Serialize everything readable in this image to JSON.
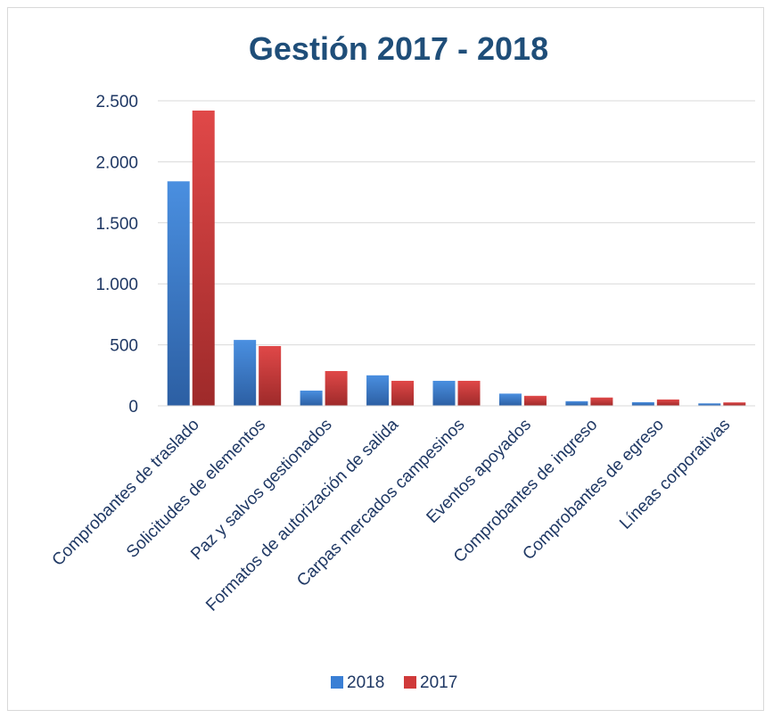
{
  "chart_data": {
    "type": "bar",
    "title": "Gestión 2017 - 2018",
    "categories": [
      "Comprobantes de traslado",
      "Solicitudes de elementos",
      "Paz y salvos gestionados",
      "Formatos de autorización de salida",
      "Carpas mercados campesinos",
      "Eventos apoyados",
      "Comprobantes de ingreso",
      "Comprobantes de egreso",
      "Líneas corporativas"
    ],
    "series": [
      {
        "name": "2018",
        "color": "#3a7fd5",
        "values": [
          1840,
          540,
          125,
          250,
          205,
          100,
          38,
          30,
          20
        ]
      },
      {
        "name": "2017",
        "color": "#d03a3a",
        "values": [
          2420,
          490,
          285,
          205,
          205,
          82,
          68,
          52,
          28
        ]
      }
    ],
    "ylim": [
      0,
      2500
    ],
    "yticks": [
      0,
      500,
      1000,
      1500,
      2000,
      2500
    ],
    "ytick_labels": [
      "0",
      "500",
      "1.000",
      "1.500",
      "2.000",
      "2.500"
    ],
    "grid": true,
    "legend_position": "bottom"
  }
}
